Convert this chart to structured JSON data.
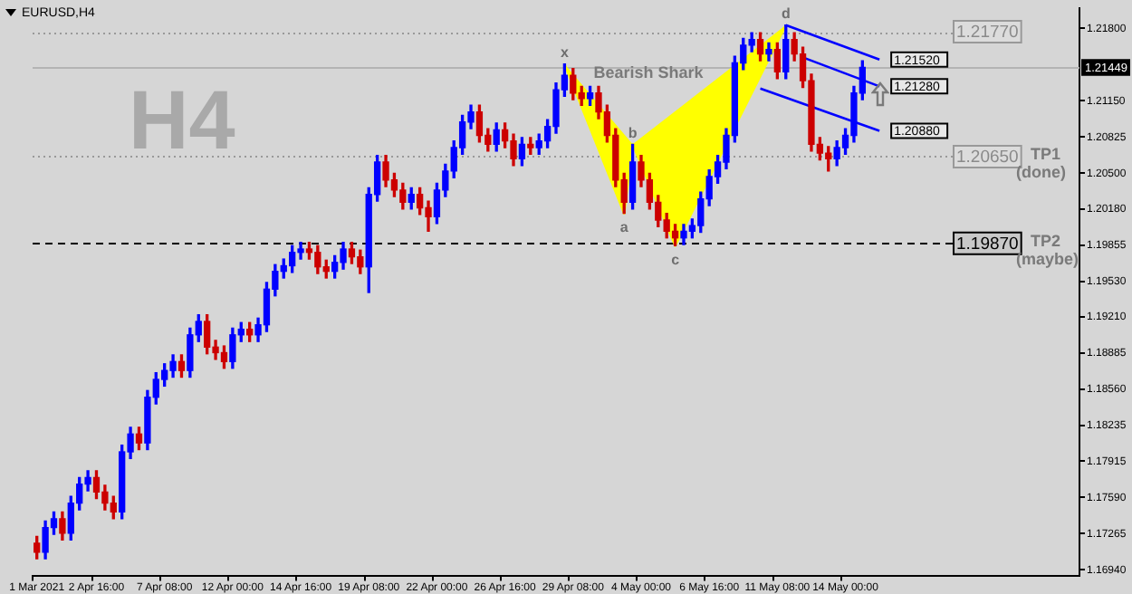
{
  "chart_data": {
    "type": "candlestick",
    "categories": [
      "1 Mar 2021",
      null,
      null,
      null,
      null,
      null,
      null,
      "2 Apr 16:00",
      null,
      null,
      null,
      null,
      null,
      null,
      null,
      "7 Apr 08:00",
      null,
      null,
      null,
      null,
      null,
      null,
      null,
      "12 Apr 00:00",
      null,
      null,
      null,
      null,
      null,
      null,
      null,
      "14 Apr 16:00",
      null,
      null,
      null,
      null,
      null,
      null,
      null,
      "19 Apr 08:00",
      null,
      null,
      null,
      null,
      null,
      null,
      null,
      "22 Apr 00:00",
      null,
      null,
      null,
      null,
      null,
      null,
      null,
      "26 Apr 16:00",
      null,
      null,
      null,
      null,
      null,
      null,
      null,
      "29 Apr 08:00",
      null,
      null,
      null,
      null,
      null,
      null,
      null,
      "4 May 00:00",
      null,
      null,
      null,
      null,
      null,
      null,
      null,
      "6 May 16:00",
      null,
      null,
      null,
      null,
      null,
      null,
      null,
      "11 May 08:00",
      null,
      null,
      null,
      null,
      null,
      null,
      null,
      "14 May 00:00",
      null,
      null,
      null,
      null,
      null,
      null,
      null,
      null,
      null,
      null,
      null,
      null,
      null,
      null,
      null,
      null,
      null,
      null,
      null,
      null,
      null,
      null,
      null,
      null,
      null,
      null,
      null
    ],
    "ohlc": [
      [
        1.1718,
        1.1724,
        1.1704,
        1.171
      ],
      [
        1.171,
        1.1738,
        1.1704,
        1.1732
      ],
      [
        1.1732,
        1.1746,
        1.1726,
        1.174
      ],
      [
        1.174,
        1.1746,
        1.1721,
        1.1727
      ],
      [
        1.1727,
        1.176,
        1.1721,
        1.1754
      ],
      [
        1.1754,
        1.1777,
        1.1748,
        1.1771
      ],
      [
        1.1771,
        1.1783,
        1.1765,
        1.1777
      ],
      [
        1.1777,
        1.1783,
        1.1758,
        1.1764
      ],
      [
        1.1764,
        1.177,
        1.1748,
        1.1754
      ],
      [
        1.1754,
        1.176,
        1.174,
        1.1746
      ],
      [
        1.1746,
        1.1806,
        1.174,
        1.18
      ],
      [
        1.18,
        1.1822,
        1.1794,
        1.1816
      ],
      [
        1.1816,
        1.1822,
        1.1802,
        1.1808
      ],
      [
        1.1808,
        1.1855,
        1.1802,
        1.1849
      ],
      [
        1.1849,
        1.1871,
        1.1843,
        1.1865
      ],
      [
        1.1865,
        1.1879,
        1.1859,
        1.1873
      ],
      [
        1.1873,
        1.1887,
        1.1867,
        1.1881
      ],
      [
        1.1881,
        1.1887,
        1.1867,
        1.1873
      ],
      [
        1.1873,
        1.1911,
        1.1867,
        1.1905
      ],
      [
        1.1905,
        1.1923,
        1.1899,
        1.1917
      ],
      [
        1.1917,
        1.1923,
        1.1888,
        1.1894
      ],
      [
        1.1894,
        1.19,
        1.1883,
        1.1889
      ],
      [
        1.1889,
        1.1895,
        1.1875,
        1.1881
      ],
      [
        1.1881,
        1.1911,
        1.1875,
        1.1905
      ],
      [
        1.1905,
        1.1916,
        1.1899,
        1.191
      ],
      [
        1.191,
        1.1916,
        1.1899,
        1.1905
      ],
      [
        1.1905,
        1.192,
        1.1899,
        1.1914
      ],
      [
        1.1914,
        1.1952,
        1.1908,
        1.1946
      ],
      [
        1.1946,
        1.1968,
        1.194,
        1.1962
      ],
      [
        1.1962,
        1.1973,
        1.1956,
        1.1967
      ],
      [
        1.1967,
        1.1985,
        1.1961,
        1.1979
      ],
      [
        1.1979,
        1.1988,
        1.1973,
        1.1982
      ],
      [
        1.1982,
        1.1988,
        1.1973,
        1.1979
      ],
      [
        1.1979,
        1.1985,
        1.196,
        1.1966
      ],
      [
        1.1966,
        1.1972,
        1.1956,
        1.1962
      ],
      [
        1.1962,
        1.1976,
        1.1956,
        1.197
      ],
      [
        1.197,
        1.1988,
        1.1964,
        1.1982
      ],
      [
        1.1982,
        1.1988,
        1.1969,
        1.1975
      ],
      [
        1.1975,
        1.1981,
        1.196,
        1.1966
      ],
      [
        1.1966,
        1.2037,
        1.1943,
        1.2031
      ],
      [
        1.2031,
        1.2066,
        1.2025,
        1.206
      ],
      [
        1.206,
        1.2066,
        1.2038,
        1.2044
      ],
      [
        1.2044,
        1.205,
        1.2029,
        1.2035
      ],
      [
        1.2035,
        1.2041,
        1.2018,
        1.2024
      ],
      [
        1.2024,
        1.2037,
        1.2018,
        1.2031
      ],
      [
        1.2031,
        1.2037,
        1.2013,
        1.2019
      ],
      [
        1.2019,
        1.2025,
        1.1998,
        1.2011
      ],
      [
        1.2011,
        1.2041,
        1.2005,
        1.2035
      ],
      [
        1.2035,
        1.2058,
        1.2029,
        1.2052
      ],
      [
        1.2052,
        1.2079,
        1.2046,
        1.2073
      ],
      [
        1.2073,
        1.2102,
        1.2067,
        1.2096
      ],
      [
        1.2096,
        1.2111,
        1.209,
        1.2105
      ],
      [
        1.2105,
        1.2111,
        1.2078,
        1.2084
      ],
      [
        1.2084,
        1.209,
        1.207,
        1.2076
      ],
      [
        1.2076,
        1.2095,
        1.207,
        1.2089
      ],
      [
        1.2089,
        1.2095,
        1.2073,
        1.2079
      ],
      [
        1.2079,
        1.2085,
        1.2057,
        1.2063
      ],
      [
        1.2063,
        1.2082,
        1.2057,
        1.2076
      ],
      [
        1.2076,
        1.2082,
        1.2067,
        1.2073
      ],
      [
        1.2073,
        1.2085,
        1.2067,
        1.2079
      ],
      [
        1.2079,
        1.2098,
        1.2073,
        1.2092
      ],
      [
        1.2092,
        1.2131,
        1.2086,
        1.2125
      ],
      [
        1.2125,
        1.2148,
        1.2119,
        1.2138
      ],
      [
        1.2138,
        1.2144,
        1.2116,
        1.2122
      ],
      [
        1.2122,
        1.2128,
        1.2111,
        1.2117
      ],
      [
        1.2117,
        1.2128,
        1.2111,
        1.2122
      ],
      [
        1.2122,
        1.2128,
        1.2099,
        1.2105
      ],
      [
        1.2105,
        1.2111,
        1.2078,
        1.2084
      ],
      [
        1.2084,
        1.209,
        1.2038,
        1.2044
      ],
      [
        1.2044,
        1.205,
        1.2014,
        1.2024
      ],
      [
        1.2024,
        1.2076,
        1.2018,
        1.206
      ],
      [
        1.206,
        1.2066,
        1.2038,
        1.2044
      ],
      [
        1.2044,
        1.205,
        1.2018,
        1.2024
      ],
      [
        1.2024,
        1.203,
        1.2002,
        1.2008
      ],
      [
        1.2008,
        1.2014,
        1.1992,
        1.1998
      ],
      [
        1.1998,
        1.2004,
        1.1985,
        1.1992
      ],
      [
        1.1992,
        1.2004,
        1.1986,
        1.1998
      ],
      [
        1.1998,
        1.2009,
        1.1992,
        1.2003
      ],
      [
        1.2003,
        1.2033,
        1.1997,
        1.2027
      ],
      [
        1.2027,
        1.2053,
        1.2021,
        1.2047
      ],
      [
        1.2047,
        1.2066,
        1.2041,
        1.206
      ],
      [
        1.206,
        1.209,
        1.2054,
        1.2084
      ],
      [
        1.2084,
        1.2155,
        1.2078,
        1.2149
      ],
      [
        1.2149,
        1.2171,
        1.2143,
        1.2165
      ],
      [
        1.2165,
        1.2176,
        1.2159,
        1.217
      ],
      [
        1.217,
        1.2176,
        1.2151,
        1.2157
      ],
      [
        1.2157,
        1.2167,
        1.2151,
        1.2161
      ],
      [
        1.2161,
        1.2167,
        1.2135,
        1.2141
      ],
      [
        1.2141,
        1.2183,
        1.2135,
        1.217
      ],
      [
        1.217,
        1.2176,
        1.2151,
        1.2157
      ],
      [
        1.2157,
        1.2163,
        1.2127,
        1.2133
      ],
      [
        1.2133,
        1.2139,
        1.207,
        1.2076
      ],
      [
        1.2076,
        1.2082,
        1.2062,
        1.2068
      ],
      [
        1.2068,
        1.2074,
        1.2052,
        1.2063
      ],
      [
        1.2063,
        1.2079,
        1.2057,
        1.2073
      ],
      [
        1.2073,
        1.209,
        1.2067,
        1.2084
      ],
      [
        1.2084,
        1.2128,
        1.2078,
        1.2122
      ],
      [
        1.2122,
        1.2151,
        1.2116,
        1.2145
      ],
      null,
      null,
      null,
      null,
      null,
      null,
      null,
      null,
      null,
      null,
      null,
      null,
      null,
      null,
      null,
      null,
      null,
      null,
      null,
      null,
      null,
      null,
      null,
      null,
      null
    ],
    "series": [
      {
        "type": "area",
        "color": "#ffff00",
        "values": [
          null,
          null,
          null,
          null,
          null,
          null,
          null,
          null,
          null,
          null,
          null,
          null,
          null,
          null,
          null,
          null,
          null,
          null,
          null,
          null,
          null,
          null,
          null,
          null,
          null,
          null,
          null,
          null,
          null,
          null,
          null,
          null,
          null,
          null,
          null,
          null,
          null,
          null,
          null,
          null,
          null,
          null,
          null,
          null,
          null,
          null,
          null,
          null,
          null,
          null,
          null,
          null,
          null,
          null,
          null,
          null,
          null,
          null,
          null,
          null,
          null,
          null,
          1.2148,
          null,
          null,
          null,
          null,
          null,
          null,
          1.2014,
          1.2076,
          null,
          null,
          null,
          null,
          1.1985,
          null,
          null,
          null,
          null,
          null,
          null,
          null,
          null,
          null,
          null,
          null,
          null,
          1.2183,
          null,
          null,
          null,
          null,
          null,
          null,
          null,
          null,
          null,
          null,
          null,
          null,
          null,
          null,
          null,
          null,
          null,
          null,
          null,
          null,
          null,
          null,
          null,
          null,
          null,
          null,
          null,
          null,
          null,
          null,
          null,
          null,
          null,
          null
        ]
      },
      {
        "type": "line",
        "color": "#0000ff",
        "values": [
          null,
          null,
          null,
          null,
          null,
          null,
          null,
          null,
          null,
          null,
          null,
          null,
          null,
          null,
          null,
          null,
          null,
          null,
          null,
          null,
          null,
          null,
          null,
          null,
          null,
          null,
          null,
          null,
          null,
          null,
          null,
          null,
          null,
          null,
          null,
          null,
          null,
          null,
          null,
          null,
          null,
          null,
          null,
          null,
          null,
          null,
          null,
          null,
          null,
          null,
          null,
          null,
          null,
          null,
          null,
          null,
          null,
          null,
          null,
          null,
          null,
          null,
          null,
          null,
          null,
          null,
          null,
          null,
          null,
          null,
          null,
          null,
          null,
          null,
          null,
          null,
          null,
          null,
          null,
          null,
          null,
          null,
          null,
          null,
          null,
          null,
          null,
          null,
          1.2183,
          null,
          null,
          null,
          null,
          null,
          null,
          null,
          null,
          null,
          null,
          1.2152,
          null,
          null,
          null,
          null,
          null,
          null,
          null,
          null,
          null,
          null,
          null,
          null,
          null,
          null,
          null,
          null,
          null,
          null,
          null,
          null,
          null,
          null,
          null
        ],
        "value_labels": [
          null,
          null,
          null,
          null,
          null,
          null,
          null,
          null,
          null,
          null,
          null,
          null,
          null,
          null,
          null,
          null,
          null,
          null,
          null,
          null,
          null,
          null,
          null,
          null,
          null,
          null,
          null,
          null,
          null,
          null,
          null,
          null,
          null,
          null,
          null,
          null,
          null,
          null,
          null,
          null,
          null,
          null,
          null,
          null,
          null,
          null,
          null,
          null,
          null,
          null,
          null,
          null,
          null,
          null,
          null,
          null,
          null,
          null,
          null,
          null,
          null,
          null,
          null,
          null,
          null,
          null,
          null,
          null,
          null,
          null,
          null,
          null,
          null,
          null,
          null,
          null,
          null,
          null,
          null,
          null,
          null,
          null,
          null,
          null,
          null,
          null,
          null,
          null,
          null,
          null,
          null,
          null,
          null,
          null,
          null,
          null,
          null,
          null,
          null,
          "1.21520",
          null,
          null,
          null,
          null,
          null,
          null,
          null,
          null,
          null,
          null,
          null,
          null,
          null,
          null,
          null,
          null,
          null,
          null,
          null,
          null,
          null,
          null,
          null
        ]
      },
      {
        "type": "line",
        "color": "#0000ff",
        "values": [
          null,
          null,
          null,
          null,
          null,
          null,
          null,
          null,
          null,
          null,
          null,
          null,
          null,
          null,
          null,
          null,
          null,
          null,
          null,
          null,
          null,
          null,
          null,
          null,
          null,
          null,
          null,
          null,
          null,
          null,
          null,
          null,
          null,
          null,
          null,
          null,
          null,
          null,
          null,
          null,
          null,
          null,
          null,
          null,
          null,
          null,
          null,
          null,
          null,
          null,
          null,
          null,
          null,
          null,
          null,
          null,
          null,
          null,
          null,
          null,
          null,
          null,
          null,
          null,
          null,
          null,
          null,
          null,
          null,
          null,
          null,
          null,
          null,
          null,
          null,
          null,
          null,
          null,
          null,
          null,
          null,
          null,
          null,
          null,
          null,
          null,
          null,
          null,
          null,
          null,
          1.2154,
          null,
          null,
          null,
          null,
          null,
          null,
          null,
          null,
          1.2128,
          null,
          null,
          null,
          null,
          null,
          null,
          null,
          null,
          null,
          null,
          null,
          null,
          null,
          null,
          null,
          null,
          null,
          null,
          null,
          null,
          null,
          null,
          null
        ],
        "value_labels": [
          null,
          null,
          null,
          null,
          null,
          null,
          null,
          null,
          null,
          null,
          null,
          null,
          null,
          null,
          null,
          null,
          null,
          null,
          null,
          null,
          null,
          null,
          null,
          null,
          null,
          null,
          null,
          null,
          null,
          null,
          null,
          null,
          null,
          null,
          null,
          null,
          null,
          null,
          null,
          null,
          null,
          null,
          null,
          null,
          null,
          null,
          null,
          null,
          null,
          null,
          null,
          null,
          null,
          null,
          null,
          null,
          null,
          null,
          null,
          null,
          null,
          null,
          null,
          null,
          null,
          null,
          null,
          null,
          null,
          null,
          null,
          null,
          null,
          null,
          null,
          null,
          null,
          null,
          null,
          null,
          null,
          null,
          null,
          null,
          null,
          null,
          null,
          null,
          null,
          null,
          null,
          null,
          null,
          null,
          null,
          null,
          null,
          null,
          null,
          "1.21280",
          null,
          null,
          null,
          null,
          null,
          null,
          null,
          null,
          null,
          null,
          null,
          null,
          null,
          null,
          null,
          null,
          null,
          null,
          null,
          null,
          null,
          null,
          null
        ]
      },
      {
        "type": "line",
        "color": "#0000ff",
        "values": [
          null,
          null,
          null,
          null,
          null,
          null,
          null,
          null,
          null,
          null,
          null,
          null,
          null,
          null,
          null,
          null,
          null,
          null,
          null,
          null,
          null,
          null,
          null,
          null,
          null,
          null,
          null,
          null,
          null,
          null,
          null,
          null,
          null,
          null,
          null,
          null,
          null,
          null,
          null,
          null,
          null,
          null,
          null,
          null,
          null,
          null,
          null,
          null,
          null,
          null,
          null,
          null,
          null,
          null,
          null,
          null,
          null,
          null,
          null,
          null,
          null,
          null,
          null,
          null,
          null,
          null,
          null,
          null,
          null,
          null,
          null,
          null,
          null,
          null,
          null,
          null,
          null,
          null,
          null,
          null,
          null,
          null,
          null,
          null,
          null,
          1.2126,
          null,
          null,
          null,
          null,
          null,
          null,
          null,
          null,
          null,
          null,
          null,
          null,
          null,
          1.2088,
          null,
          null,
          null,
          null,
          null,
          null,
          null,
          null,
          null,
          null,
          null,
          null,
          null,
          null,
          null,
          null,
          null,
          null,
          null,
          null,
          null,
          null,
          null
        ],
        "value_labels": [
          null,
          null,
          null,
          null,
          null,
          null,
          null,
          null,
          null,
          null,
          null,
          null,
          null,
          null,
          null,
          null,
          null,
          null,
          null,
          null,
          null,
          null,
          null,
          null,
          null,
          null,
          null,
          null,
          null,
          null,
          null,
          null,
          null,
          null,
          null,
          null,
          null,
          null,
          null,
          null,
          null,
          null,
          null,
          null,
          null,
          null,
          null,
          null,
          null,
          null,
          null,
          null,
          null,
          null,
          null,
          null,
          null,
          null,
          null,
          null,
          null,
          null,
          null,
          null,
          null,
          null,
          null,
          null,
          null,
          null,
          null,
          null,
          null,
          null,
          null,
          null,
          null,
          null,
          null,
          null,
          null,
          null,
          null,
          null,
          null,
          null,
          null,
          null,
          null,
          null,
          null,
          null,
          null,
          null,
          null,
          null,
          null,
          null,
          null,
          "1.20880",
          null,
          null,
          null,
          null,
          null,
          null,
          null,
          null,
          null,
          null,
          null,
          null,
          null,
          null,
          null,
          null,
          null,
          null,
          null,
          null,
          null,
          null,
          null
        ]
      }
    ],
    "ylim": [
      1.1689,
      1.2198
    ],
    "yticks": [
      {
        "value": 1.218,
        "label": "1.21800"
      },
      {
        "value": 1.2115,
        "label": "1.21150"
      },
      {
        "value": 1.20825,
        "label": "1.20825"
      },
      {
        "value": 1.205,
        "label": "1.20500"
      },
      {
        "value": 1.2018,
        "label": "1.20180"
      },
      {
        "value": 1.19855,
        "label": "1.19855"
      },
      {
        "value": 1.1953,
        "label": "1.19530"
      },
      {
        "value": 1.1921,
        "label": "1.19210"
      },
      {
        "value": 1.18885,
        "label": "1.18885"
      },
      {
        "value": 1.1856,
        "label": "1.18560"
      },
      {
        "value": 1.18235,
        "label": "1.18235"
      },
      {
        "value": 1.17915,
        "label": "1.17915"
      },
      {
        "value": 1.1759,
        "label": "1.17590"
      },
      {
        "value": 1.17265,
        "label": "1.17265"
      },
      {
        "value": 1.1694,
        "label": "1.16940"
      }
    ],
    "ref_lines": [
      {
        "axis": "y",
        "value": 1.2177,
        "label": "1.21770",
        "color": "#999999",
        "line_style": "dotted"
      },
      {
        "axis": "y",
        "value": 1.21449,
        "label": "1.21449",
        "color": "#b4b4b4",
        "line_style": "solid"
      },
      {
        "axis": "y",
        "value": 1.2065,
        "label": "1.20650",
        "color": "#999999",
        "line_style": "dotted"
      },
      {
        "axis": "y",
        "value": 1.1987,
        "label": "1.19870",
        "color": "#000000",
        "line_style": "dashed"
      }
    ],
    "annotations": [
      "EURUSD,H4",
      "H4",
      {
        "text": "x",
        "y": 1.2148
      },
      {
        "text": "a",
        "y": 1.2014
      },
      {
        "text": "b",
        "y": 1.2076
      },
      {
        "text": "c",
        "y": 1.1985
      },
      {
        "text": "d",
        "y": 1.2183
      },
      "TP1",
      "(done)",
      "TP2",
      "(maybe)",
      "Bearish Shark"
    ]
  }
}
